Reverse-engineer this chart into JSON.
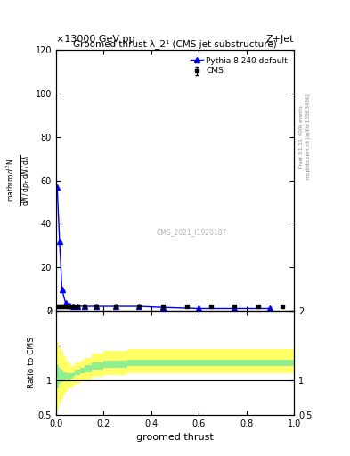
{
  "title_top": "×13000 GeV pp",
  "title_right": "Z+Jet",
  "plot_title": "Groomed thrust λ_2¹ (CMS jet substructure)",
  "watermark": "CMS_2021_I1920187",
  "rivet_text": "Rivet 3.1.10, 400k events",
  "arxiv_text": "mcplots.cern.ch [arXiv:1306.3436]",
  "xlabel": "groomed thrust",
  "ylabel_main_line1": "mathrm d²N",
  "ylabel_main_line2": "mathrm d N / mathrm d pₜ mathrm d N / mathrm d lambda",
  "ylabel_ratio": "Ratio to CMS",
  "xlim": [
    0,
    1
  ],
  "ylim_main": [
    0,
    120
  ],
  "ylim_ratio": [
    0.5,
    2.0
  ],
  "yticks_main": [
    0,
    20,
    40,
    60,
    80,
    100,
    120
  ],
  "cms_x": [
    0.005,
    0.015,
    0.025,
    0.035,
    0.045,
    0.055,
    0.07,
    0.09,
    0.12,
    0.17,
    0.25,
    0.35,
    0.45,
    0.55,
    0.65,
    0.75,
    0.85,
    0.95
  ],
  "cms_y": [
    2.0,
    2.0,
    2.0,
    2.0,
    2.0,
    2.0,
    2.0,
    2.0,
    2.0,
    2.0,
    2.0,
    2.0,
    2.0,
    2.0,
    2.0,
    2.0,
    2.0,
    2.0
  ],
  "cms_yerr": [
    0.3,
    0.3,
    0.3,
    0.3,
    0.3,
    0.3,
    0.3,
    0.3,
    0.3,
    0.3,
    0.3,
    0.3,
    0.3,
    0.3,
    0.3,
    0.3,
    0.3,
    0.3
  ],
  "pythia_x": [
    0.005,
    0.015,
    0.025,
    0.04,
    0.055,
    0.07,
    0.09,
    0.12,
    0.17,
    0.25,
    0.35,
    0.45,
    0.6,
    0.75,
    0.9
  ],
  "pythia_y": [
    57.0,
    32.0,
    10.0,
    3.5,
    2.5,
    2.2,
    2.1,
    2.0,
    2.0,
    2.0,
    2.0,
    1.5,
    1.0,
    1.0,
    1.0
  ],
  "ratio_x_edges": [
    0.0,
    0.01,
    0.02,
    0.03,
    0.04,
    0.05,
    0.06,
    0.07,
    0.08,
    0.1,
    0.12,
    0.15,
    0.2,
    0.3,
    0.4,
    0.5,
    0.6,
    0.7,
    0.8,
    0.9,
    1.0
  ],
  "ratio_green_lo": [
    0.88,
    0.95,
    0.97,
    1.0,
    1.02,
    1.0,
    1.02,
    1.05,
    1.08,
    1.1,
    1.12,
    1.15,
    1.18,
    1.2,
    1.2,
    1.2,
    1.2,
    1.2,
    1.2,
    1.2
  ],
  "ratio_green_hi": [
    1.22,
    1.18,
    1.15,
    1.12,
    1.1,
    1.1,
    1.1,
    1.12,
    1.15,
    1.18,
    1.22,
    1.25,
    1.28,
    1.3,
    1.3,
    1.3,
    1.3,
    1.3,
    1.3,
    1.3
  ],
  "ratio_yellow_lo": [
    0.58,
    0.65,
    0.72,
    0.8,
    0.85,
    0.88,
    0.9,
    0.92,
    0.95,
    0.98,
    1.0,
    1.05,
    1.08,
    1.1,
    1.1,
    1.1,
    1.1,
    1.1,
    1.1,
    1.1
  ],
  "ratio_yellow_hi": [
    1.55,
    1.48,
    1.42,
    1.35,
    1.28,
    1.25,
    1.22,
    1.2,
    1.25,
    1.28,
    1.32,
    1.38,
    1.42,
    1.45,
    1.45,
    1.45,
    1.45,
    1.45,
    1.45,
    1.45
  ],
  "color_cms": "black",
  "color_pythia": "blue",
  "color_green": "#90ee90",
  "color_yellow": "#ffff66",
  "background_color": "white",
  "legend_cms": "CMS",
  "legend_pythia": "Pythia 8.240 default"
}
